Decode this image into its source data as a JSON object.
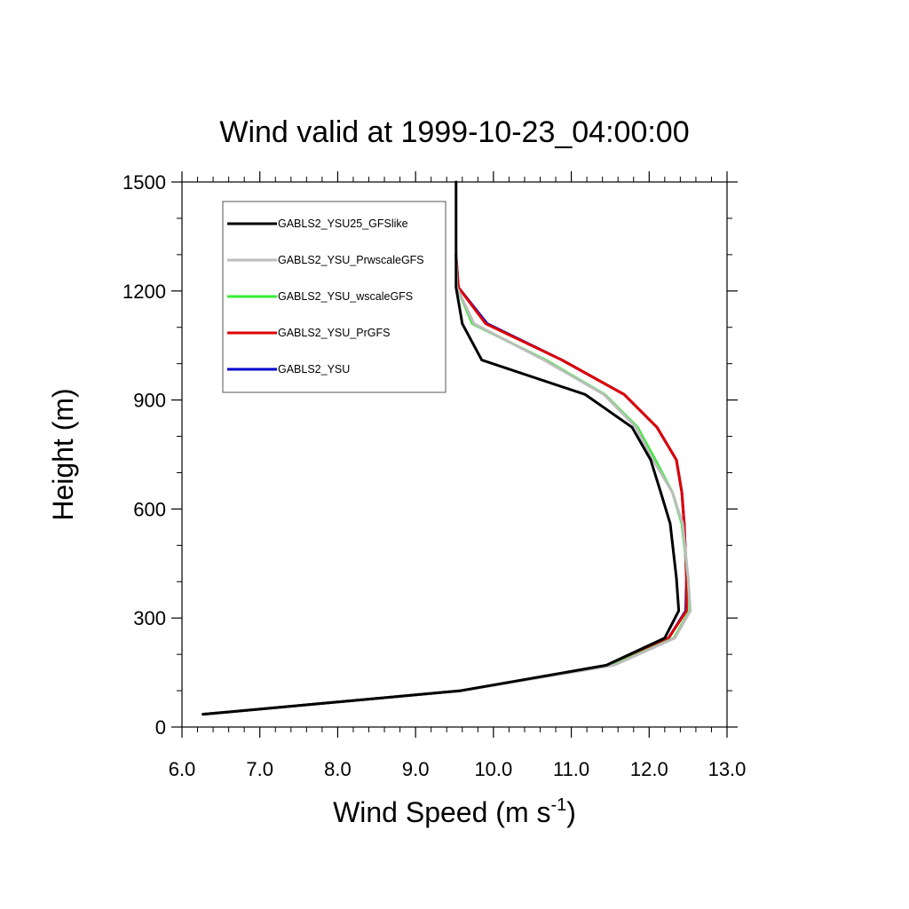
{
  "chart_data": {
    "type": "line",
    "title": "Wind valid at 1999-10-23_04:00:00",
    "xlabel": "Wind Speed (m s",
    "xlabel_sup": "-1",
    "xlabel_close": ")",
    "ylabel": "Height (m)",
    "xlim": [
      6.0,
      13.0
    ],
    "ylim": [
      0,
      1500
    ],
    "xticks": [
      "6.0",
      "7.0",
      "8.0",
      "9.0",
      "10.0",
      "11.0",
      "12.0",
      "13.0"
    ],
    "yticks": [
      "0",
      "300",
      "600",
      "900",
      "1200",
      "1500"
    ],
    "legend_position": "top-left",
    "series": [
      {
        "name": "GABLS2_YSU25_GFSlike",
        "color": "#000000",
        "x": [
          6.27,
          9.58,
          11.45,
          12.2,
          12.38,
          12.35,
          12.27,
          12.15,
          12.02,
          11.78,
          11.18,
          9.85,
          9.6,
          9.52,
          9.52,
          9.52
        ],
        "y": [
          35,
          100,
          170,
          245,
          320,
          410,
          560,
          645,
          735,
          825,
          915,
          1010,
          1110,
          1210,
          1300,
          1500
        ]
      },
      {
        "name": "GABLS2_YSU_PrwscaleGFS",
        "color": "#bdbdbd",
        "x": [
          6.27,
          9.58,
          11.55,
          12.33,
          12.53,
          12.5,
          12.43,
          12.3,
          12.05,
          11.83,
          11.42,
          10.65,
          9.75,
          9.53,
          9.52
        ],
        "y": [
          35,
          100,
          170,
          245,
          320,
          410,
          560,
          645,
          735,
          825,
          915,
          1010,
          1110,
          1210,
          1300
        ]
      },
      {
        "name": "GABLS2_YSU_wscaleGFS",
        "color": "#33ee33",
        "x": [
          6.27,
          9.58,
          11.53,
          12.32,
          12.52,
          12.5,
          12.42,
          12.3,
          12.08,
          11.85,
          11.43,
          10.67,
          9.73,
          9.53,
          9.52
        ],
        "y": [
          35,
          100,
          170,
          245,
          320,
          410,
          560,
          645,
          735,
          825,
          915,
          1010,
          1110,
          1210,
          1300
        ]
      },
      {
        "name": "GABLS2_YSU_PrGFS",
        "color": "#dd0000",
        "x": [
          6.27,
          9.58,
          11.52,
          12.25,
          12.48,
          12.48,
          12.45,
          12.42,
          12.35,
          12.1,
          11.68,
          10.88,
          9.9,
          9.55,
          9.52
        ],
        "y": [
          35,
          100,
          170,
          245,
          320,
          410,
          560,
          645,
          735,
          825,
          915,
          1010,
          1110,
          1210,
          1300
        ]
      },
      {
        "name": "GABLS2_YSU",
        "color": "#0000cc",
        "x": [
          6.27,
          9.58,
          11.52,
          12.25,
          12.47,
          12.48,
          12.45,
          12.42,
          12.35,
          12.1,
          11.68,
          10.88,
          9.92,
          9.55,
          9.52
        ],
        "y": [
          35,
          100,
          170,
          245,
          320,
          410,
          560,
          645,
          735,
          825,
          915,
          1010,
          1110,
          1210,
          1300
        ]
      }
    ]
  }
}
